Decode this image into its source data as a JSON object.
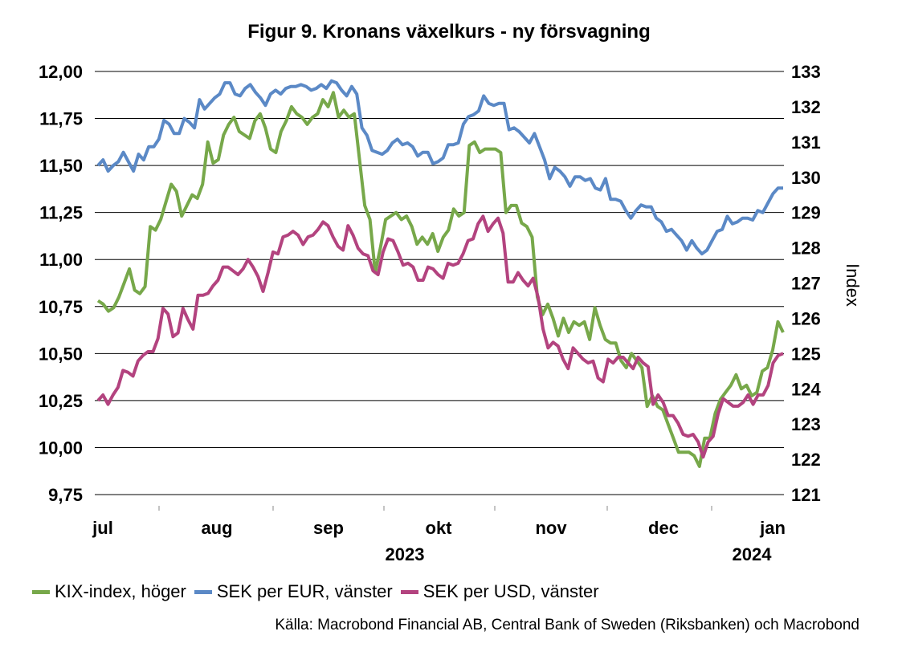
{
  "chart_data": {
    "type": "line",
    "title": "Figur 9. Kronans växelkurs - ny försvagning",
    "y_left": {
      "ticks": [
        "12,00",
        "11,75",
        "11,50",
        "11,25",
        "11,00",
        "10,75",
        "10,50",
        "10,25",
        "10,00",
        "9,75"
      ],
      "ylim": [
        9.75,
        12.0
      ]
    },
    "y_right": {
      "label": "Index",
      "ticks": [
        "133",
        "132",
        "131",
        "130",
        "129",
        "128",
        "127",
        "126",
        "125",
        "124",
        "123",
        "122",
        "121"
      ],
      "ylim": [
        121,
        133
      ]
    },
    "x_labels": [
      "jul",
      "aug",
      "sep",
      "okt",
      "nov",
      "dec",
      "jan"
    ],
    "year_labels": [
      "2023",
      "2024"
    ],
    "grid": true,
    "legend_position": "bottom",
    "series": [
      {
        "name": "KIX-index, höger",
        "color": "#77a84a",
        "axis": "right",
        "values": [
          126.5,
          126.4,
          126.2,
          126.3,
          126.6,
          127.0,
          127.4,
          126.8,
          126.7,
          126.9,
          128.6,
          128.5,
          128.8,
          129.3,
          129.8,
          129.6,
          128.9,
          129.2,
          129.5,
          129.4,
          129.8,
          131.0,
          130.4,
          130.5,
          131.2,
          131.5,
          131.7,
          131.3,
          131.2,
          131.1,
          131.6,
          131.8,
          131.4,
          130.8,
          130.7,
          131.3,
          131.6,
          132.0,
          131.8,
          131.7,
          131.5,
          131.7,
          131.8,
          132.2,
          132.0,
          132.4,
          131.7,
          131.9,
          131.7,
          131.8,
          130.5,
          129.2,
          128.8,
          127.3,
          128.0,
          128.8,
          128.9,
          129.0,
          128.8,
          128.9,
          128.6,
          128.1,
          128.3,
          128.1,
          128.4,
          127.9,
          128.3,
          128.5,
          129.1,
          128.9,
          129.0,
          130.9,
          131.0,
          130.7,
          130.8,
          130.8,
          130.8,
          130.7,
          129.0,
          129.2,
          129.2,
          128.7,
          128.6,
          128.3,
          126.6,
          126.1,
          126.4,
          126.0,
          125.5,
          126.0,
          125.6,
          125.9,
          125.8,
          125.9,
          125.4,
          126.3,
          125.8,
          125.4,
          125.3,
          125.3,
          124.8,
          124.6,
          125.0,
          124.8,
          124.6,
          123.5,
          123.8,
          123.5,
          123.4,
          123.0,
          122.6,
          122.2,
          122.2,
          122.2,
          122.1,
          121.8,
          122.6,
          122.6,
          123.3,
          123.7,
          123.9,
          124.1,
          124.4,
          124.0,
          124.1,
          123.8,
          123.9,
          124.5,
          124.6,
          125.1,
          125.9,
          125.6
        ]
      },
      {
        "name": "SEK per EUR, vänster",
        "color": "#5b89c6",
        "axis": "left",
        "values": [
          11.5,
          11.53,
          11.47,
          11.5,
          11.52,
          11.57,
          11.52,
          11.47,
          11.56,
          11.53,
          11.6,
          11.6,
          11.64,
          11.74,
          11.72,
          11.67,
          11.67,
          11.75,
          11.73,
          11.7,
          11.85,
          11.8,
          11.83,
          11.86,
          11.88,
          11.94,
          11.94,
          11.88,
          11.87,
          11.91,
          11.93,
          11.89,
          11.86,
          11.82,
          11.88,
          11.9,
          11.88,
          11.91,
          11.92,
          11.92,
          11.93,
          11.92,
          11.9,
          11.91,
          11.93,
          11.91,
          11.95,
          11.94,
          11.9,
          11.87,
          11.92,
          11.88,
          11.7,
          11.66,
          11.58,
          11.57,
          11.56,
          11.58,
          11.62,
          11.64,
          11.61,
          11.62,
          11.6,
          11.55,
          11.57,
          11.57,
          11.51,
          11.52,
          11.54,
          11.61,
          11.61,
          11.62,
          11.72,
          11.76,
          11.77,
          11.79,
          11.87,
          11.83,
          11.82,
          11.83,
          11.83,
          11.69,
          11.7,
          11.68,
          11.65,
          11.62,
          11.67,
          11.6,
          11.53,
          11.43,
          11.49,
          11.47,
          11.44,
          11.39,
          11.44,
          11.44,
          11.42,
          11.43,
          11.38,
          11.37,
          11.43,
          11.32,
          11.32,
          11.31,
          11.26,
          11.22,
          11.26,
          11.29,
          11.28,
          11.28,
          11.22,
          11.2,
          11.15,
          11.16,
          11.13,
          11.1,
          11.05,
          11.1,
          11.06,
          11.03,
          11.05,
          11.1,
          11.15,
          11.16,
          11.23,
          11.19,
          11.2,
          11.22,
          11.22,
          11.21,
          11.26,
          11.25,
          11.3,
          11.35,
          11.38,
          11.38
        ]
      },
      {
        "name": "SEK per USD, vänster",
        "color": "#b3437f",
        "axis": "left",
        "values": [
          10.25,
          10.28,
          10.23,
          10.28,
          10.32,
          10.41,
          10.4,
          10.38,
          10.46,
          10.49,
          10.51,
          10.51,
          10.58,
          10.74,
          10.71,
          10.59,
          10.61,
          10.74,
          10.68,
          10.63,
          10.81,
          10.81,
          10.82,
          10.86,
          10.89,
          10.96,
          10.96,
          10.94,
          10.92,
          10.95,
          11.0,
          10.96,
          10.91,
          10.83,
          10.93,
          11.04,
          11.03,
          11.12,
          11.13,
          11.15,
          11.13,
          11.08,
          11.12,
          11.13,
          11.16,
          11.2,
          11.18,
          11.12,
          11.07,
          11.05,
          11.18,
          11.13,
          11.06,
          11.03,
          11.02,
          10.94,
          10.92,
          11.04,
          11.11,
          11.1,
          11.04,
          10.97,
          10.98,
          10.96,
          10.89,
          10.89,
          10.96,
          10.95,
          10.92,
          10.9,
          10.98,
          10.97,
          10.98,
          11.03,
          11.1,
          11.11,
          11.19,
          11.23,
          11.15,
          11.19,
          11.22,
          11.14,
          10.88,
          10.88,
          10.93,
          10.89,
          10.86,
          10.9,
          10.8,
          10.63,
          10.53,
          10.56,
          10.54,
          10.47,
          10.42,
          10.53,
          10.5,
          10.47,
          10.45,
          10.46,
          10.37,
          10.35,
          10.47,
          10.45,
          10.48,
          10.48,
          10.45,
          10.42,
          10.48,
          10.45,
          10.43,
          10.23,
          10.28,
          10.24,
          10.17,
          10.17,
          10.13,
          10.07,
          10.06,
          10.07,
          10.03,
          9.95,
          10.03,
          10.06,
          10.18,
          10.26,
          10.24,
          10.22,
          10.22,
          10.24,
          10.28,
          10.23,
          10.28,
          10.28,
          10.33,
          10.45,
          10.49,
          10.5
        ]
      }
    ]
  },
  "source": "Källa: Macrobond Financial AB, Central Bank of Sweden (Riksbanken) och Macrobond"
}
